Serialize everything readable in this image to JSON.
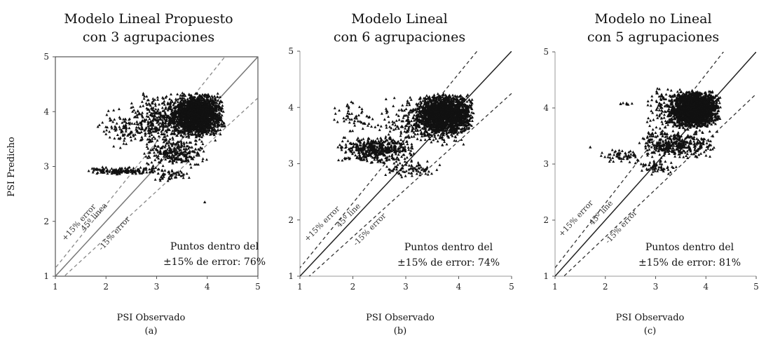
{
  "figure": {
    "ylabel": "PSI Predicho"
  },
  "chart_data": [
    {
      "type": "scatter",
      "title_lines": [
        "Modelo Lineal Propuesto",
        "con 3 agrupaciones"
      ],
      "xlabel": "PSI Observado",
      "panel_label": "(a)",
      "xlim": [
        1,
        5
      ],
      "ylim": [
        1,
        5
      ],
      "xticks": [
        "1",
        "2",
        "3",
        "4",
        "5"
      ],
      "yticks": [
        "1",
        "2",
        "3",
        "4",
        "5"
      ],
      "marker": "triangle",
      "reference_lines": [
        {
          "name": "+15% error",
          "slope": 1.15,
          "style": "dashed"
        },
        {
          "name": "45º linea",
          "slope": 1.0,
          "style": "solid"
        },
        {
          "name": "-15% error",
          "slope": 0.85,
          "style": "dashed"
        }
      ],
      "annotation": [
        "Puntos dentro del",
        "±15% de error: 76%"
      ],
      "clusters": [
        {
          "x_range": [
            3.3,
            4.35
          ],
          "y_range": [
            3.55,
            4.35
          ],
          "n": 1800
        },
        {
          "x_range": [
            2.5,
            4.2
          ],
          "y_range": [
            3.4,
            4.35
          ],
          "n": 600
        },
        {
          "x_range": [
            1.8,
            3.3
          ],
          "y_range": [
            3.3,
            4.1
          ],
          "n": 160
        },
        {
          "x_range": [
            2.7,
            4.0
          ],
          "y_range": [
            3.0,
            3.5
          ],
          "n": 260
        },
        {
          "x_range": [
            1.6,
            3.1
          ],
          "y_range": [
            2.85,
            3.0
          ],
          "n": 160
        },
        {
          "x_range": [
            2.9,
            3.7
          ],
          "y_range": [
            2.7,
            3.0
          ],
          "n": 60
        }
      ],
      "outliers": [
        {
          "x": 3.95,
          "y": 2.35
        }
      ]
    },
    {
      "type": "scatter",
      "title_lines": [
        "Modelo Lineal",
        "con 6 agrupaciones"
      ],
      "xlabel": "PSI Observado",
      "panel_label": "(b)",
      "xlim": [
        1,
        5
      ],
      "ylim": [
        1,
        5
      ],
      "xticks": [
        "1",
        "2",
        "3",
        "4",
        "5"
      ],
      "yticks": [
        "1",
        "2",
        "3",
        "4",
        "5"
      ],
      "marker": "triangle",
      "reference_lines": [
        {
          "name": "+15% error",
          "slope": 1.15,
          "style": "dashed"
        },
        {
          "name": "45º line",
          "slope": 1.0,
          "style": "solid"
        },
        {
          "name": "-15% error",
          "slope": 0.85,
          "style": "dashed"
        }
      ],
      "annotation": [
        "Puntos dentro del",
        "±15% de error: 74%"
      ],
      "clusters": [
        {
          "x_range": [
            3.2,
            4.3
          ],
          "y_range": [
            3.5,
            4.25
          ],
          "n": 1800
        },
        {
          "x_range": [
            2.5,
            4.3
          ],
          "y_range": [
            3.3,
            4.25
          ],
          "n": 500
        },
        {
          "x_range": [
            1.7,
            3.2
          ],
          "y_range": [
            3.0,
            3.5
          ],
          "n": 500
        },
        {
          "x_range": [
            1.6,
            2.6
          ],
          "y_range": [
            3.5,
            4.15
          ],
          "n": 60
        },
        {
          "x_range": [
            2.5,
            3.7
          ],
          "y_range": [
            2.75,
            3.05
          ],
          "n": 80
        }
      ],
      "outliers": []
    },
    {
      "type": "scatter",
      "title_lines": [
        "Modelo no Lineal",
        "con 5 agrupaciones"
      ],
      "xlabel": "PSI Observado",
      "panel_label": "(c)",
      "xlim": [
        1,
        5
      ],
      "ylim": [
        1,
        5
      ],
      "xticks": [
        "1",
        "2",
        "3",
        "4",
        "5"
      ],
      "yticks": [
        "1",
        "2",
        "3",
        "4",
        "5"
      ],
      "marker": "triangle",
      "reference_lines": [
        {
          "name": "+15% error",
          "slope": 1.15,
          "style": "dashed"
        },
        {
          "name": "45º line",
          "slope": 1.0,
          "style": "solid"
        },
        {
          "name": "-15% error",
          "slope": 0.85,
          "style": "dashed"
        }
      ],
      "annotation": [
        "Puntos dentro del",
        "±15% de error: 81%"
      ],
      "clusters": [
        {
          "x_range": [
            3.3,
            4.3
          ],
          "y_range": [
            3.65,
            4.3
          ],
          "n": 1800
        },
        {
          "x_range": [
            2.8,
            4.3
          ],
          "y_range": [
            3.55,
            4.35
          ],
          "n": 500
        },
        {
          "x_range": [
            2.6,
            4.2
          ],
          "y_range": [
            3.1,
            3.6
          ],
          "n": 400
        },
        {
          "x_range": [
            1.9,
            2.8
          ],
          "y_range": [
            3.0,
            3.3
          ],
          "n": 60
        },
        {
          "x_range": [
            2.5,
            3.5
          ],
          "y_range": [
            2.8,
            3.1
          ],
          "n": 60
        },
        {
          "x_range": [
            2.2,
            2.6
          ],
          "y_range": [
            4.05,
            4.1
          ],
          "n": 10
        }
      ],
      "outliers": [
        {
          "x": 1.7,
          "y": 3.3
        }
      ]
    }
  ]
}
